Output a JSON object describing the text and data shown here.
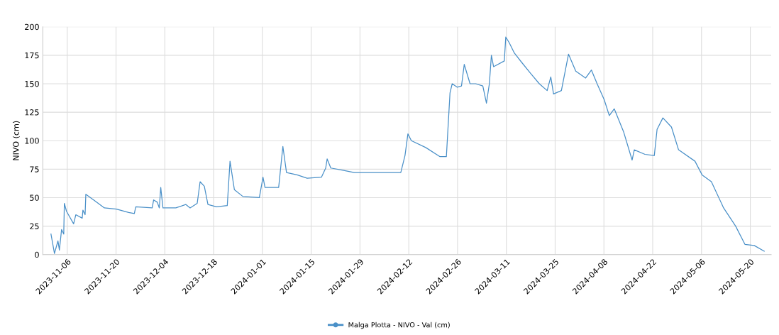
{
  "chart_data": {
    "type": "line",
    "ylabel": "NIVO (cm)",
    "x": [
      "2023-11-01T08:00",
      "2023-11-02T08:00",
      "2023-11-03T08:00",
      "2023-11-03T18:00",
      "2023-11-04T09:00",
      "2023-11-05T00:00",
      "2023-11-05T04:00",
      "2023-11-05T19:00",
      "2023-11-07T20:00",
      "2023-11-08T11:00",
      "2023-11-10T07:00",
      "2023-11-10T12:00",
      "2023-11-11T03:00",
      "2023-11-11T08:00",
      "2023-11-14T00:00",
      "2023-11-16T16:00",
      "2023-11-20T03:00",
      "2023-11-23T15:00",
      "2023-11-25T06:00",
      "2023-11-25T16:00",
      "2023-11-30T09:00",
      "2023-11-30T19:00",
      "2023-12-01T20:00",
      "2023-12-02T10:00",
      "2023-12-02T20:00",
      "2023-12-03T11:00",
      "2023-12-07T04:00",
      "2023-12-10T00:00",
      "2023-12-11T06:00",
      "2023-12-13T07:00",
      "2023-12-14T03:00",
      "2023-12-15T08:00",
      "2023-12-16T09:00",
      "2023-12-18T20:00",
      "2023-12-21T22:00",
      "2023-12-22T17:00",
      "2023-12-23T23:00",
      "2023-12-26T10:00",
      "2023-12-31T03:00",
      "2024-01-01T04:00",
      "2024-01-01T18:00",
      "2024-01-05T16:00",
      "2024-01-06T21:00",
      "2024-01-07T22:00",
      "2024-01-10T23:00",
      "2024-01-13T20:00",
      "2024-01-17T23:00",
      "2024-01-19T04:00",
      "2024-01-19T14:00",
      "2024-01-20T15:00",
      "2024-01-24T02:00",
      "2024-01-27T09:00",
      "2024-02-03T08:00",
      "2024-02-09T17:00",
      "2024-02-10T22:00",
      "2024-02-11T18:00",
      "2024-02-12T18:00",
      "2024-02-16T21:00",
      "2024-02-20T23:00",
      "2024-02-22T19:00",
      "2024-02-23T20:00",
      "2024-02-24T11:00",
      "2024-02-25T21:00",
      "2024-02-27T03:00",
      "2024-02-27T22:00",
      "2024-02-29T14:00",
      "2024-03-02T05:00",
      "2024-03-04T06:00",
      "2024-03-05T07:00",
      "2024-03-06T03:00",
      "2024-03-06T17:00",
      "2024-03-07T08:00",
      "2024-03-10T10:00",
      "2024-03-10T20:00",
      "2024-03-11T20:00",
      "2024-03-13T07:00",
      "2024-03-15T08:00",
      "2024-03-18T00:00",
      "2024-03-20T11:00",
      "2024-03-22T17:00",
      "2024-03-23T18:00",
      "2024-03-24T13:00",
      "2024-03-26T19:00",
      "2024-03-28T20:00",
      "2024-03-30T22:00",
      "2024-04-02T18:00",
      "2024-04-04T10:00",
      "2024-04-06T01:00",
      "2024-04-08T02:00",
      "2024-04-09T13:00",
      "2024-04-10T23:00",
      "2024-04-13T15:00",
      "2024-04-16T02:00",
      "2024-04-16T17:00",
      "2024-04-19T19:00",
      "2024-04-22T11:00",
      "2024-04-23T06:00",
      "2024-04-24T22:00",
      "2024-04-27T09:00",
      "2024-04-29T10:00",
      "2024-05-04T03:00",
      "2024-05-06T04:00",
      "2024-05-08T20:00",
      "2024-05-12T08:00",
      "2024-05-15T19:00",
      "2024-05-18T11:00",
      "2024-05-21T03:00",
      "2024-05-24T00:00"
    ],
    "series": [
      {
        "name": "Malga Plotta - NIVO - Val (cm)",
        "color": "#4a90c8",
        "values": [
          18,
          1,
          12,
          4,
          22,
          18,
          45,
          38,
          27,
          35,
          32,
          39,
          35,
          53,
          47,
          41,
          40,
          37,
          36,
          42,
          41,
          48,
          46,
          41,
          59,
          41,
          41,
          44,
          41,
          45,
          64,
          60,
          44,
          42,
          43,
          82,
          57,
          51,
          50,
          68,
          59,
          59,
          95,
          72,
          70,
          67,
          68,
          76,
          84,
          76,
          74,
          72,
          72,
          72,
          87,
          106,
          100,
          94,
          86,
          86,
          142,
          150,
          147,
          148,
          167,
          150,
          150,
          148,
          133,
          150,
          175,
          165,
          170,
          191,
          186,
          177,
          169,
          159,
          150,
          144,
          156,
          141,
          144,
          176,
          161,
          155,
          162,
          150,
          136,
          122,
          128,
          108,
          83,
          92,
          88,
          87,
          110,
          120,
          112,
          92,
          82,
          70,
          64,
          41,
          25,
          9,
          8,
          3
        ]
      }
    ],
    "xlim": [
      "2023-10-30",
      "2024-05-26"
    ],
    "xticks": [
      "2023-11-06",
      "2023-11-20",
      "2023-12-04",
      "2023-12-18",
      "2024-01-01",
      "2024-01-15",
      "2024-01-29",
      "2024-02-12",
      "2024-02-26",
      "2024-03-11",
      "2024-03-25",
      "2024-04-08",
      "2024-04-22",
      "2024-05-06",
      "2024-05-20"
    ],
    "ylim": [
      0,
      200
    ],
    "yticks": [
      0,
      25,
      50,
      75,
      100,
      125,
      150,
      175,
      200
    ],
    "grid": true,
    "legend": "bottom"
  }
}
